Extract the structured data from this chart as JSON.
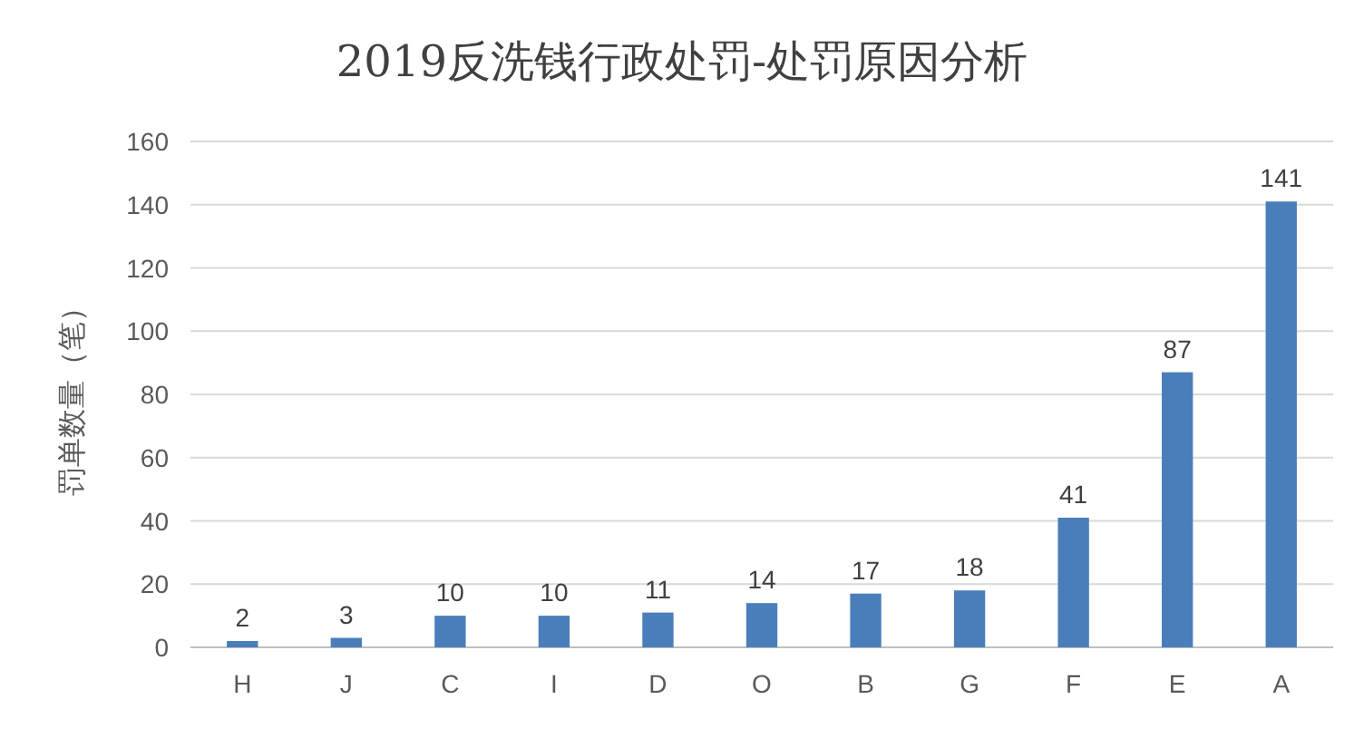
{
  "chart_data": {
    "type": "bar",
    "title": "2019反洗钱行政处罚-处罚原因分析",
    "ylabel": "罚单数量（笔）",
    "categories": [
      "H",
      "J",
      "C",
      "I",
      "D",
      "O",
      "B",
      "G",
      "F",
      "E",
      "A"
    ],
    "values": [
      2,
      3,
      10,
      10,
      11,
      14,
      17,
      18,
      41,
      87,
      141
    ],
    "color": "#4a7ebb",
    "ylim": [
      0,
      160
    ],
    "yticks": [
      0,
      20,
      40,
      60,
      80,
      100,
      120,
      140,
      160
    ],
    "grid": "y",
    "data_labels": true
  }
}
